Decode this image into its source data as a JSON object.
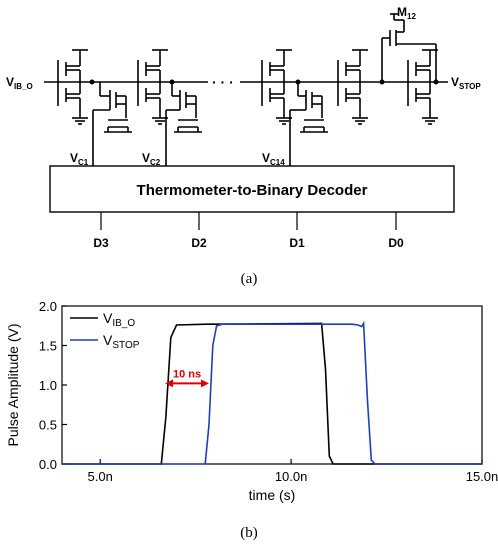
{
  "circuit": {
    "input_label": {
      "main": "V",
      "sub": "IB_O"
    },
    "output_label": {
      "main": "V",
      "sub": "STOP"
    },
    "transistor_label": {
      "main": "M",
      "sub": "12"
    },
    "ellipsis": "· · ·",
    "control_labels": [
      {
        "main": "V",
        "sub": "C1"
      },
      {
        "main": "V",
        "sub": "C2"
      },
      {
        "main": "V",
        "sub": "C14"
      }
    ],
    "decoder_label": "Thermometer-to-Binary Decoder",
    "outputs": [
      "D3",
      "D2",
      "D1",
      "D0"
    ]
  },
  "caption_a": "(a)",
  "caption_b": "(b)",
  "chart_data": {
    "type": "line",
    "title": "",
    "xlabel": "time (s)",
    "ylabel": "Pulse Amplitude (V)",
    "xlim": [
      4.0,
      15.0
    ],
    "ylim": [
      0.0,
      2.0
    ],
    "x_ticks": [
      5.0,
      10.0,
      15.0
    ],
    "x_tick_labels": [
      "5.0n",
      "10.0n",
      "15.0n"
    ],
    "y_ticks": [
      0.0,
      0.5,
      1.0,
      1.5,
      2.0
    ],
    "y_tick_labels": [
      "0.0",
      "0.5",
      "1.0",
      "1.5",
      "2.0"
    ],
    "x_unit": "ns",
    "grid": false,
    "legend_position": "top-left",
    "series": [
      {
        "name": "V_IB_O",
        "legend_main": "V",
        "legend_sub": "IB_O",
        "color": "#000000",
        "points": [
          [
            4.0,
            0.0
          ],
          [
            6.6,
            0.0
          ],
          [
            6.72,
            0.6
          ],
          [
            6.85,
            1.6
          ],
          [
            7.0,
            1.76
          ],
          [
            7.8,
            1.77
          ],
          [
            10.8,
            1.78
          ],
          [
            10.9,
            1.2
          ],
          [
            11.0,
            0.1
          ],
          [
            11.1,
            0.0
          ],
          [
            15.0,
            0.0
          ]
        ]
      },
      {
        "name": "V_STOP",
        "legend_main": "V",
        "legend_sub": "STOP",
        "color": "#1f3fbf",
        "points": [
          [
            4.0,
            0.0
          ],
          [
            7.75,
            0.0
          ],
          [
            7.85,
            0.5
          ],
          [
            7.95,
            1.5
          ],
          [
            8.05,
            1.75
          ],
          [
            8.2,
            1.77
          ],
          [
            11.6,
            1.77
          ],
          [
            11.75,
            1.76
          ],
          [
            11.85,
            1.74
          ],
          [
            11.9,
            1.78
          ],
          [
            12.0,
            0.8
          ],
          [
            12.1,
            0.05
          ],
          [
            12.2,
            0.0
          ],
          [
            15.0,
            0.0
          ]
        ]
      }
    ],
    "annotation": {
      "text": "10 ns",
      "color": "#e00000",
      "y": 1.02,
      "x_start": 6.7,
      "x_end": 7.85
    }
  }
}
